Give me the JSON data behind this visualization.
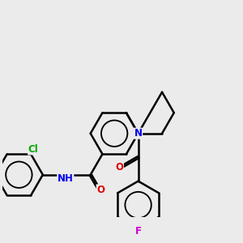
{
  "bg_color": "#ebebeb",
  "bond_color": "#000000",
  "bond_width": 1.8,
  "atom_colors": {
    "N": "#0000ee",
    "O": "#dd0000",
    "Cl": "#00aa00",
    "F": "#cc00cc"
  },
  "font_size": 8.5,
  "fig_size": [
    3.0,
    3.0
  ],
  "dpi": 100
}
